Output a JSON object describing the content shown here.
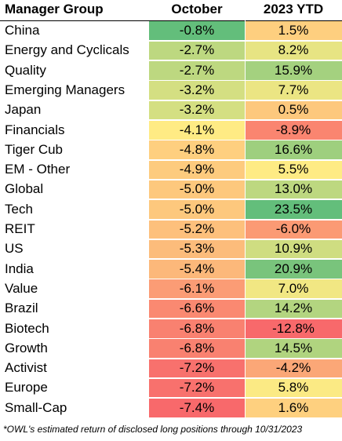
{
  "chart_data": {
    "type": "heatmap",
    "columns": [
      "Manager Group",
      "October",
      "2023 YTD"
    ],
    "rows": [
      {
        "group": "China",
        "october": -0.8,
        "ytd": 1.5
      },
      {
        "group": "Energy and Cyclicals",
        "october": -2.7,
        "ytd": 8.2
      },
      {
        "group": "Quality",
        "october": -2.7,
        "ytd": 15.9
      },
      {
        "group": "Emerging Managers",
        "october": -3.2,
        "ytd": 7.7
      },
      {
        "group": "Japan",
        "october": -3.2,
        "ytd": 0.5
      },
      {
        "group": "Financials",
        "october": -4.1,
        "ytd": -8.9
      },
      {
        "group": "Tiger Cub",
        "october": -4.8,
        "ytd": 16.6
      },
      {
        "group": "EM - Other",
        "october": -4.9,
        "ytd": 5.5
      },
      {
        "group": "Global",
        "october": -5.0,
        "ytd": 13.0
      },
      {
        "group": "Tech",
        "october": -5.0,
        "ytd": 23.5
      },
      {
        "group": "REIT",
        "october": -5.2,
        "ytd": -6.0
      },
      {
        "group": "US",
        "october": -5.3,
        "ytd": 10.9
      },
      {
        "group": "India",
        "october": -5.4,
        "ytd": 20.9
      },
      {
        "group": "Value",
        "october": -6.1,
        "ytd": 7.0
      },
      {
        "group": "Brazil",
        "october": -6.6,
        "ytd": 14.2
      },
      {
        "group": "Biotech",
        "october": -6.8,
        "ytd": -12.8
      },
      {
        "group": "Growth",
        "october": -6.8,
        "ytd": 14.5
      },
      {
        "group": "Activist",
        "october": -7.2,
        "ytd": -4.2
      },
      {
        "group": "Europe",
        "october": -7.2,
        "ytd": 5.8
      },
      {
        "group": "Small-Cap",
        "october": -7.4,
        "ytd": 1.6
      }
    ],
    "value_format": "percent, 1 decimal",
    "color_scale": {
      "low": "#f8696b",
      "mid": "#ffeb84",
      "high": "#63be7b"
    }
  },
  "footnote": "*OWL's estimated return of disclosed long positions through 10/31/2023"
}
